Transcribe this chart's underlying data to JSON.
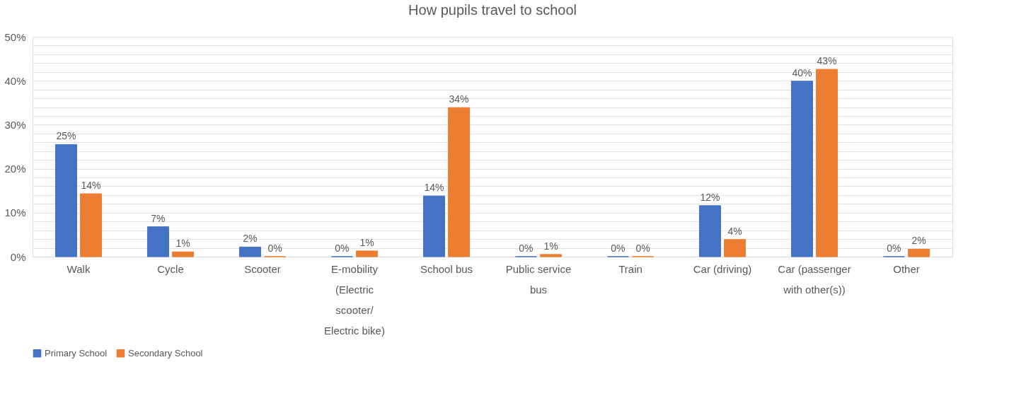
{
  "chart_data": {
    "type": "bar",
    "title": "How pupils travel to school",
    "categories": [
      "Walk",
      "Cycle",
      "Scooter",
      "E-mobility (Electric scooter/ Electric bike)",
      "School bus",
      "Public service bus",
      "Train",
      "Car (driving)",
      "Car (passenger with other(s))",
      "Other"
    ],
    "series": [
      {
        "name": "Primary School",
        "color": "#4472c4",
        "values": [
          25.5,
          6.8,
          2.2,
          0,
          13.8,
          0,
          0,
          11.6,
          39.9,
          0
        ],
        "value_labels": [
          "25%",
          "7%",
          "2%",
          "0%",
          "14%",
          "0%",
          "0%",
          "12%",
          "40%",
          "0%"
        ]
      },
      {
        "name": "Secondary School",
        "color": "#ed7d31",
        "values": [
          14.3,
          1.1,
          0,
          1.3,
          33.9,
          0.5,
          0,
          3.9,
          42.6,
          1.7
        ],
        "value_labels": [
          "14%",
          "1%",
          "0%",
          "1%",
          "34%",
          "1%",
          "0%",
          "4%",
          "43%",
          "2%"
        ]
      }
    ],
    "ylim": [
      0,
      50
    ],
    "yticks": [
      {
        "value": 0,
        "label": "0%"
      },
      {
        "value": 2,
        "label": null
      },
      {
        "value": 4,
        "label": null
      },
      {
        "value": 6,
        "label": null
      },
      {
        "value": 8,
        "label": null
      },
      {
        "value": 10,
        "label": "10%"
      },
      {
        "value": 12,
        "label": null
      },
      {
        "value": 14,
        "label": null
      },
      {
        "value": 16,
        "label": null
      },
      {
        "value": 18,
        "label": null
      },
      {
        "value": 20,
        "label": "20%"
      },
      {
        "value": 22,
        "label": null
      },
      {
        "value": 24,
        "label": null
      },
      {
        "value": 26,
        "label": null
      },
      {
        "value": 28,
        "label": null
      },
      {
        "value": 30,
        "label": "30%"
      },
      {
        "value": 32,
        "label": null
      },
      {
        "value": 34,
        "label": null
      },
      {
        "value": 36,
        "label": null
      },
      {
        "value": 38,
        "label": null
      },
      {
        "value": 40,
        "label": "40%"
      },
      {
        "value": 42,
        "label": null
      },
      {
        "value": 44,
        "label": null
      },
      {
        "value": 46,
        "label": null
      },
      {
        "value": 48,
        "label": null
      },
      {
        "value": 50,
        "label": "50%"
      }
    ],
    "grid": "y",
    "legend": "bottom"
  }
}
